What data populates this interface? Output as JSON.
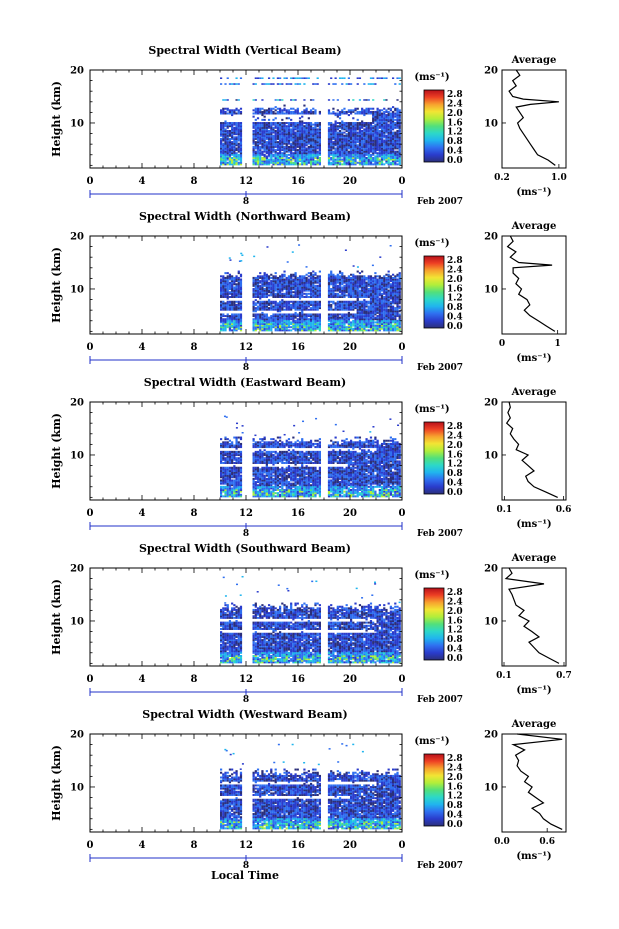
{
  "figure": {
    "xlabel": "Local Time",
    "month_label": "Feb 2007",
    "date_tick_label": "8",
    "colorbar_unit": "(ms⁻¹)",
    "colorbar_ticks": [
      "0.0",
      "0.4",
      "0.8",
      "1.2",
      "1.6",
      "2.0",
      "2.4",
      "2.8"
    ],
    "avg_title": "Average",
    "avg_unit": "(ms⁻¹)",
    "colors": {
      "colormap": [
        "#2b2f7a",
        "#2a3ccc",
        "#2f6ff0",
        "#20b5ee",
        "#2dd8c8",
        "#53e07a",
        "#b2ee3a",
        "#f2e534",
        "#f7a12e",
        "#ee4024",
        "#b8101a"
      ],
      "axis": "#000000",
      "date_axis": "#2030c8"
    }
  },
  "chart_data": [
    {
      "type": "heatmap",
      "title": "Spectral Width (Vertical Beam)",
      "ylabel": "Height (km)",
      "x_ticks": [
        "0",
        "4",
        "8",
        "12",
        "16",
        "20",
        "0"
      ],
      "y_ticks": [
        "10",
        "20"
      ],
      "xlim": [
        0,
        24
      ],
      "ylim": [
        1.5,
        20
      ],
      "value_range": [
        0.0,
        3.0
      ],
      "data_time_ranges": [
        [
          10,
          11.7
        ],
        [
          12.5,
          17.7
        ],
        [
          18.3,
          23.8
        ]
      ],
      "gaps": [
        [
          10,
          11.5,
          11.7
        ],
        [
          12.8,
          13.6,
          17.7
        ]
      ],
      "profile": {
        "title": "Average",
        "xlabel": "(ms⁻¹)",
        "x_ticks": [
          "0.2",
          "1.0"
        ],
        "x_tick_values": [
          0.2,
          1.0
        ],
        "xlim": [
          0.2,
          1.1
        ],
        "y_ticks": [
          "10",
          "20"
        ],
        "ylim": [
          1.5,
          20
        ],
        "heights": [
          2,
          3,
          4,
          5,
          6,
          7,
          8,
          9,
          10,
          11,
          12,
          13,
          13.5,
          14,
          14.5,
          15,
          16,
          17,
          18,
          19,
          20
        ],
        "values": [
          0.95,
          0.85,
          0.7,
          0.65,
          0.6,
          0.55,
          0.5,
          0.45,
          0.42,
          0.5,
          0.45,
          0.4,
          0.6,
          1.0,
          0.5,
          0.35,
          0.3,
          0.4,
          0.35,
          0.45,
          0.4
        ]
      }
    },
    {
      "type": "heatmap",
      "title": "Spectral Width (Northward Beam)",
      "ylabel": "Height (km)",
      "x_ticks": [
        "0",
        "4",
        "8",
        "12",
        "16",
        "20",
        "0"
      ],
      "y_ticks": [
        "10",
        "20"
      ],
      "xlim": [
        0,
        24
      ],
      "ylim": [
        1.5,
        20
      ],
      "value_range": [
        0.0,
        3.0
      ],
      "data_time_ranges": [
        [
          10,
          11.7
        ],
        [
          12.5,
          17.7
        ],
        [
          18.3,
          23.8
        ]
      ],
      "gaps": [
        [
          7.5,
          8.2,
          11.5
        ],
        [
          5.2,
          5.8,
          10.4
        ]
      ],
      "profile": {
        "title": "Average",
        "xlabel": "(ms⁻¹)",
        "x_ticks": [
          "0",
          "1"
        ],
        "x_tick_values": [
          0,
          1
        ],
        "xlim": [
          0,
          1.15
        ],
        "y_ticks": [
          "10",
          "20"
        ],
        "ylim": [
          1.5,
          20
        ],
        "heights": [
          2,
          3,
          4,
          5,
          6,
          7,
          8,
          9,
          10,
          11,
          12,
          13,
          14,
          14.5,
          15,
          16,
          17,
          18,
          19,
          20
        ],
        "values": [
          0.95,
          0.8,
          0.65,
          0.5,
          0.4,
          0.5,
          0.45,
          0.3,
          0.35,
          0.25,
          0.3,
          0.2,
          0.2,
          0.9,
          0.3,
          0.15,
          0.25,
          0.1,
          0.2,
          0.15
        ]
      }
    },
    {
      "type": "heatmap",
      "title": "Spectral Width (Eastward Beam)",
      "ylabel": "Height (km)",
      "x_ticks": [
        "0",
        "4",
        "8",
        "12",
        "16",
        "20",
        "0"
      ],
      "y_ticks": [
        "10",
        "20"
      ],
      "xlim": [
        0,
        24
      ],
      "ylim": [
        1.5,
        20
      ],
      "value_range": [
        0.0,
        3.0
      ],
      "data_time_ranges": [
        [
          10,
          11.7
        ],
        [
          12.5,
          17.7
        ],
        [
          18.3,
          23.8
        ]
      ],
      "gaps": [
        [
          10.5,
          11.2,
          11.9
        ],
        [
          7.4,
          8.0,
          9.8
        ]
      ],
      "profile": {
        "title": "Average",
        "xlabel": "(ms⁻¹)",
        "x_ticks": [
          "0.1",
          "0.6"
        ],
        "x_tick_values": [
          0.1,
          0.6
        ],
        "xlim": [
          0.08,
          0.62
        ],
        "y_ticks": [
          "10",
          "20"
        ],
        "ylim": [
          1.5,
          20
        ],
        "heights": [
          2,
          3,
          4,
          5,
          6,
          7,
          8,
          9,
          10,
          11,
          12,
          13,
          14,
          15,
          16,
          17,
          18,
          19,
          20
        ],
        "values": [
          0.55,
          0.45,
          0.35,
          0.3,
          0.28,
          0.35,
          0.3,
          0.25,
          0.3,
          0.2,
          0.22,
          0.18,
          0.15,
          0.17,
          0.12,
          0.15,
          0.13,
          0.15,
          0.14
        ]
      }
    },
    {
      "type": "heatmap",
      "title": "Spectral Width (Southward Beam)",
      "ylabel": "Height (km)",
      "x_ticks": [
        "0",
        "4",
        "8",
        "12",
        "16",
        "20",
        "0"
      ],
      "y_ticks": [
        "10",
        "20"
      ],
      "xlim": [
        0,
        24
      ],
      "ylim": [
        1.5,
        20
      ],
      "value_range": [
        0.0,
        3.0
      ],
      "data_time_ranges": [
        [
          10,
          11.7
        ],
        [
          12.5,
          17.7
        ],
        [
          18.3,
          23.8
        ]
      ],
      "gaps": [
        [
          7.5,
          8.0,
          11.8
        ],
        [
          9.6,
          10.2,
          12.0
        ]
      ],
      "profile": {
        "title": "Average",
        "xlabel": "(ms⁻¹)",
        "x_ticks": [
          "0.1",
          "0.7"
        ],
        "x_tick_values": [
          0.1,
          0.7
        ],
        "xlim": [
          0.08,
          0.72
        ],
        "y_ticks": [
          "10",
          "20"
        ],
        "ylim": [
          1.5,
          20
        ],
        "heights": [
          2,
          3,
          4,
          5,
          6,
          7,
          8,
          9,
          10,
          11,
          12,
          13,
          14,
          15,
          16,
          17,
          18,
          19,
          20
        ],
        "values": [
          0.65,
          0.55,
          0.45,
          0.4,
          0.35,
          0.45,
          0.38,
          0.3,
          0.35,
          0.25,
          0.3,
          0.22,
          0.2,
          0.18,
          0.15,
          0.5,
          0.12,
          0.18,
          0.15
        ]
      }
    },
    {
      "type": "heatmap",
      "title": "Spectral Width (Westward Beam)",
      "ylabel": "Height (km)",
      "x_ticks": [
        "0",
        "4",
        "8",
        "12",
        "16",
        "20",
        "0"
      ],
      "y_ticks": [
        "10",
        "20"
      ],
      "xlim": [
        0,
        24
      ],
      "ylim": [
        1.5,
        20
      ],
      "value_range": [
        0.0,
        3.0
      ],
      "data_time_ranges": [
        [
          10,
          11.7
        ],
        [
          12.5,
          17.7
        ],
        [
          18.3,
          23.8
        ]
      ],
      "gaps": [
        [
          10.3,
          11.0,
          12.0
        ],
        [
          7.6,
          8.2,
          10.0
        ]
      ],
      "profile": {
        "title": "Average",
        "xlabel": "(ms⁻¹)",
        "x_ticks": [
          "0.0",
          "0.6"
        ],
        "x_tick_values": [
          0.0,
          0.6
        ],
        "xlim": [
          0.0,
          0.85
        ],
        "y_ticks": [
          "10",
          "20"
        ],
        "ylim": [
          1.5,
          20
        ],
        "heights": [
          2,
          3,
          4,
          5,
          6,
          7,
          8,
          9,
          10,
          11,
          12,
          13,
          14,
          15,
          16,
          17,
          18,
          19,
          20
        ],
        "values": [
          0.8,
          0.65,
          0.55,
          0.5,
          0.4,
          0.55,
          0.45,
          0.35,
          0.4,
          0.3,
          0.35,
          0.25,
          0.2,
          0.22,
          0.18,
          0.3,
          0.15,
          0.8,
          0.2
        ]
      }
    }
  ]
}
